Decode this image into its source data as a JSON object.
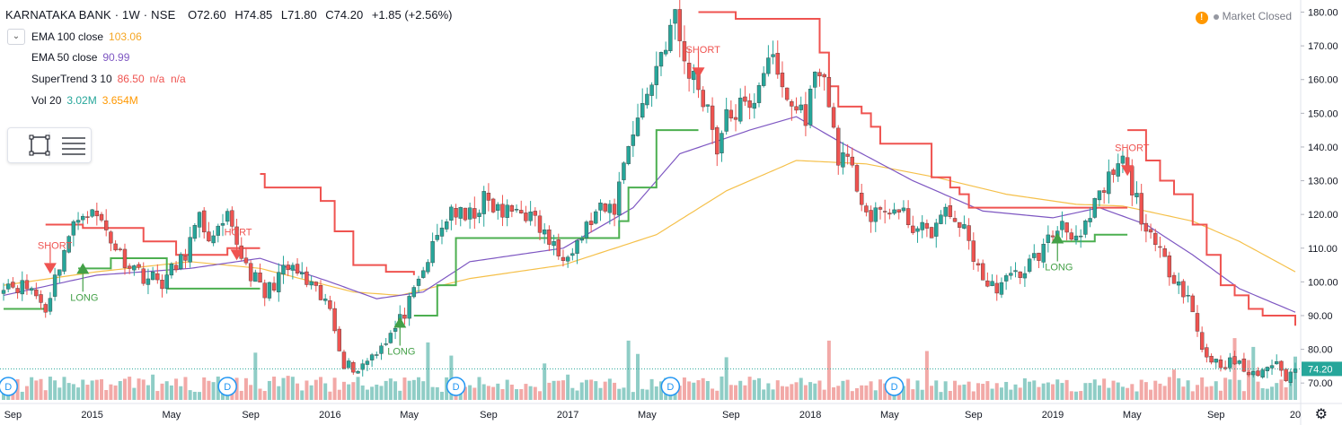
{
  "header": {
    "symbol": "KARNATAKA BANK · 1W · NSE",
    "open": "O72.60",
    "high": "H74.85",
    "low": "L71.80",
    "close": "C74.20",
    "change": "+1.85 (+2.56%)"
  },
  "status": {
    "warning_icon": "!",
    "text": "Market Closed"
  },
  "indicators": [
    {
      "label": "EMA 100 close",
      "value": "103.06",
      "color": "#f5a623"
    },
    {
      "label": "EMA 50 close",
      "value": "90.99",
      "color": "#7e57c2"
    },
    {
      "label": "SuperTrend 3 10",
      "value": "86.50",
      "extra": "n/a  n/a",
      "color": "#ef5350"
    },
    {
      "label": "Vol 20",
      "value": "3.02M",
      "extra": "3.654M",
      "color": "#26a69a",
      "extra_color": "#ff9800"
    }
  ],
  "colors": {
    "up": "#26a69a",
    "down": "#ef5350",
    "vol_up": "#8fcdc6",
    "vol_down": "#f2a9a7",
    "supertrend_up": "#4caf50",
    "supertrend_down": "#ef5350",
    "ema100": "#f5c04a",
    "ema50": "#7e57c2"
  },
  "price_label": "74.20",
  "chart_data": {
    "type": "candlestick",
    "y_axis": {
      "ticks": [
        "70.00",
        "80.00",
        "90.00",
        "100.00",
        "110.00",
        "120.00",
        "130.00",
        "140.00",
        "150.00",
        "160.00",
        "170.00",
        "180.00"
      ],
      "ylim": [
        65,
        182
      ]
    },
    "x_axis": {
      "ticks": [
        {
          "label": "Sep",
          "week": 2
        },
        {
          "label": "2015",
          "week": 19
        },
        {
          "label": "May",
          "week": 36
        },
        {
          "label": "Sep",
          "week": 53
        },
        {
          "label": "2016",
          "week": 70
        },
        {
          "label": "May",
          "week": 87
        },
        {
          "label": "Sep",
          "week": 104
        },
        {
          "label": "2017",
          "week": 121
        },
        {
          "label": "May",
          "week": 138
        },
        {
          "label": "Sep",
          "week": 156
        },
        {
          "label": "2018",
          "week": 173
        },
        {
          "label": "May",
          "week": 190
        },
        {
          "label": "Sep",
          "week": 208
        },
        {
          "label": "2019",
          "week": 225
        },
        {
          "label": "May",
          "week": 242
        },
        {
          "label": "Sep",
          "week": 260
        },
        {
          "label": "20",
          "week": 277
        }
      ]
    },
    "close_anchors": [
      [
        0,
        100
      ],
      [
        6,
        98
      ],
      [
        9,
        92
      ],
      [
        13,
        110
      ],
      [
        17,
        122
      ],
      [
        21,
        118
      ],
      [
        25,
        108
      ],
      [
        30,
        102
      ],
      [
        34,
        100
      ],
      [
        38,
        106
      ],
      [
        42,
        118
      ],
      [
        45,
        112
      ],
      [
        48,
        118
      ],
      [
        52,
        105
      ],
      [
        56,
        96
      ],
      [
        59,
        102
      ],
      [
        62,
        104
      ],
      [
        66,
        98
      ],
      [
        70,
        92
      ],
      [
        73,
        76
      ],
      [
        76,
        74
      ],
      [
        80,
        80
      ],
      [
        84,
        86
      ],
      [
        88,
        96
      ],
      [
        92,
        110
      ],
      [
        96,
        122
      ],
      [
        99,
        118
      ],
      [
        103,
        124
      ],
      [
        107,
        120
      ],
      [
        111,
        122
      ],
      [
        115,
        116
      ],
      [
        119,
        108
      ],
      [
        123,
        112
      ],
      [
        127,
        120
      ],
      [
        131,
        122
      ],
      [
        134,
        142
      ],
      [
        137,
        152
      ],
      [
        140,
        164
      ],
      [
        142,
        172
      ],
      [
        144,
        178
      ],
      [
        146,
        165
      ],
      [
        149,
        158
      ],
      [
        151,
        152
      ],
      [
        153,
        140
      ],
      [
        155,
        148
      ],
      [
        158,
        152
      ],
      [
        160,
        150
      ],
      [
        162,
        160
      ],
      [
        164,
        168
      ],
      [
        166,
        160
      ],
      [
        169,
        152
      ],
      [
        172,
        150
      ],
      [
        175,
        165
      ],
      [
        177,
        152
      ],
      [
        179,
        138
      ],
      [
        182,
        132
      ],
      [
        186,
        118
      ],
      [
        190,
        122
      ],
      [
        194,
        118
      ],
      [
        198,
        114
      ],
      [
        202,
        120
      ],
      [
        205,
        118
      ],
      [
        208,
        108
      ],
      [
        211,
        98
      ],
      [
        215,
        100
      ],
      [
        219,
        104
      ],
      [
        223,
        110
      ],
      [
        227,
        118
      ],
      [
        231,
        112
      ],
      [
        234,
        122
      ],
      [
        237,
        130
      ],
      [
        240,
        136
      ],
      [
        242,
        128
      ],
      [
        244,
        120
      ],
      [
        246,
        112
      ],
      [
        250,
        104
      ],
      [
        254,
        96
      ],
      [
        257,
        80
      ],
      [
        260,
        76
      ],
      [
        264,
        76
      ],
      [
        268,
        72
      ],
      [
        272,
        76
      ],
      [
        275,
        72
      ],
      [
        277,
        74.2
      ]
    ],
    "series": [
      {
        "name": "EMA 100 close",
        "anchors": [
          [
            0,
            99
          ],
          [
            20,
            103
          ],
          [
            40,
            106
          ],
          [
            55,
            104
          ],
          [
            75,
            97
          ],
          [
            85,
            96
          ],
          [
            100,
            101
          ],
          [
            120,
            105
          ],
          [
            140,
            114
          ],
          [
            155,
            127
          ],
          [
            170,
            136
          ],
          [
            185,
            135
          ],
          [
            200,
            131
          ],
          [
            215,
            126
          ],
          [
            230,
            123
          ],
          [
            240,
            122.5
          ],
          [
            255,
            118
          ],
          [
            265,
            112
          ],
          [
            277,
            103
          ]
        ]
      },
      {
        "name": "EMA 50 close",
        "anchors": [
          [
            0,
            96
          ],
          [
            20,
            102
          ],
          [
            40,
            104
          ],
          [
            55,
            107
          ],
          [
            70,
            100
          ],
          [
            80,
            95
          ],
          [
            90,
            97
          ],
          [
            100,
            106
          ],
          [
            120,
            110
          ],
          [
            135,
            122
          ],
          [
            145,
            138
          ],
          [
            160,
            145
          ],
          [
            170,
            149
          ],
          [
            180,
            141
          ],
          [
            195,
            130
          ],
          [
            210,
            121
          ],
          [
            225,
            119
          ],
          [
            235,
            122
          ],
          [
            245,
            117
          ],
          [
            255,
            108
          ],
          [
            265,
            98
          ],
          [
            277,
            91
          ]
        ]
      }
    ],
    "supertrend": [
      {
        "trend": "up",
        "points": [
          [
            0,
            92
          ],
          [
            9,
            92
          ]
        ]
      },
      {
        "trend": "down",
        "points": [
          [
            9,
            117
          ],
          [
            16,
            117
          ],
          [
            17,
            116
          ],
          [
            29,
            116
          ],
          [
            30,
            112
          ],
          [
            36,
            112
          ],
          [
            37,
            108
          ],
          [
            46,
            108
          ],
          [
            48,
            110
          ],
          [
            55,
            110
          ]
        ]
      },
      {
        "trend": "up",
        "points": [
          [
            16,
            104
          ],
          [
            22,
            104
          ],
          [
            23,
            107
          ],
          [
            34,
            107
          ],
          [
            35,
            98
          ],
          [
            55,
            98
          ]
        ]
      },
      {
        "trend": "down",
        "points": [
          [
            55,
            132
          ],
          [
            56,
            128
          ],
          [
            65,
            128
          ],
          [
            68,
            124
          ],
          [
            71,
            115
          ],
          [
            75,
            105
          ],
          [
            82,
            103
          ],
          [
            88,
            102
          ]
        ]
      },
      {
        "trend": "up",
        "points": [
          [
            88,
            90
          ],
          [
            93,
            99
          ],
          [
            97,
            113
          ],
          [
            104,
            113
          ],
          [
            110,
            113
          ],
          [
            125,
            113
          ],
          [
            128,
            113
          ],
          [
            132,
            118
          ],
          [
            134,
            128
          ],
          [
            140,
            145
          ],
          [
            144,
            145
          ],
          [
            146,
            145
          ],
          [
            149,
            145
          ]
        ]
      },
      {
        "trend": "down",
        "points": [
          [
            149,
            180
          ],
          [
            156,
            180
          ],
          [
            157,
            178
          ],
          [
            172,
            178
          ],
          [
            175,
            168
          ],
          [
            177,
            158
          ],
          [
            179,
            152
          ],
          [
            184,
            150
          ],
          [
            186,
            146
          ],
          [
            188,
            141
          ],
          [
            197,
            141
          ],
          [
            199,
            131
          ],
          [
            203,
            128
          ],
          [
            205,
            126
          ],
          [
            207,
            122
          ],
          [
            241,
            122
          ]
        ]
      },
      {
        "trend": "up",
        "points": [
          [
            225,
            112
          ],
          [
            231,
            112
          ],
          [
            234,
            114
          ],
          [
            241,
            114
          ]
        ]
      },
      {
        "trend": "down",
        "points": [
          [
            241,
            145
          ],
          [
            245,
            136
          ],
          [
            248,
            130
          ],
          [
            251,
            126
          ],
          [
            255,
            117
          ],
          [
            258,
            108
          ],
          [
            261,
            99
          ],
          [
            264,
            96
          ],
          [
            267,
            92
          ],
          [
            270,
            90
          ],
          [
            277,
            87
          ]
        ]
      }
    ],
    "signals": [
      {
        "type": "short",
        "week": 10,
        "price": 104,
        "label": "SHORT"
      },
      {
        "type": "long",
        "week": 17,
        "price": 104,
        "label": "LONG"
      },
      {
        "type": "short",
        "week": 50,
        "price": 108,
        "label": "HORT"
      },
      {
        "type": "long",
        "week": 85,
        "price": 88,
        "label": "LONG"
      },
      {
        "type": "short",
        "week": 149,
        "price": 162,
        "label": "SHORT"
      },
      {
        "type": "long",
        "week": 226,
        "price": 113,
        "label": "LONG"
      },
      {
        "type": "short",
        "week": 241,
        "price": 133,
        "label": "SHORT"
      }
    ],
    "dividend_markers": [
      {
        "label": "D",
        "week": 1
      },
      {
        "label": "D",
        "week": 48
      },
      {
        "label": "D",
        "week": 97
      },
      {
        "label": "D",
        "week": 143
      },
      {
        "label": "D",
        "week": 191
      }
    ],
    "volume": {
      "avg": "3.02M",
      "avg20": "3.654M"
    }
  }
}
